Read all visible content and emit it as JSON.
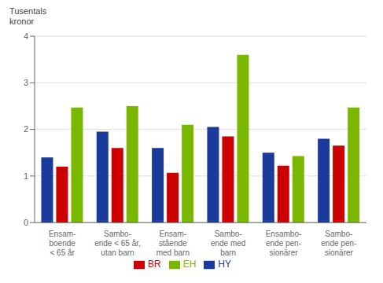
{
  "chart_data": {
    "type": "bar",
    "ylabel": "Tusentals\nkronor",
    "categories": [
      "Ensam-\nboende\n< 65 år",
      "Sambo-\nende < 65 år,\nutan barn",
      "Ensam-\nstående\nmed barn",
      "Sambo-\nende med\nbarn",
      "Ensambo-\nende pen-\nsionärer",
      "Sambo-\nende pen-\nsionärer"
    ],
    "series": [
      {
        "name": "HY",
        "color": "#1a3a9c",
        "values": [
          1.4,
          1.95,
          1.6,
          2.05,
          1.5,
          1.8
        ]
      },
      {
        "name": "BR",
        "color": "#cc0000",
        "values": [
          1.2,
          1.6,
          1.07,
          1.85,
          1.22,
          1.65
        ]
      },
      {
        "name": "EH",
        "color": "#7ab800",
        "values": [
          2.47,
          2.5,
          2.1,
          3.6,
          1.43,
          2.47
        ]
      }
    ],
    "ylim": [
      0,
      4
    ],
    "yticks": [
      0,
      1,
      2,
      3,
      4
    ],
    "grid": true,
    "legend": "bottom"
  }
}
